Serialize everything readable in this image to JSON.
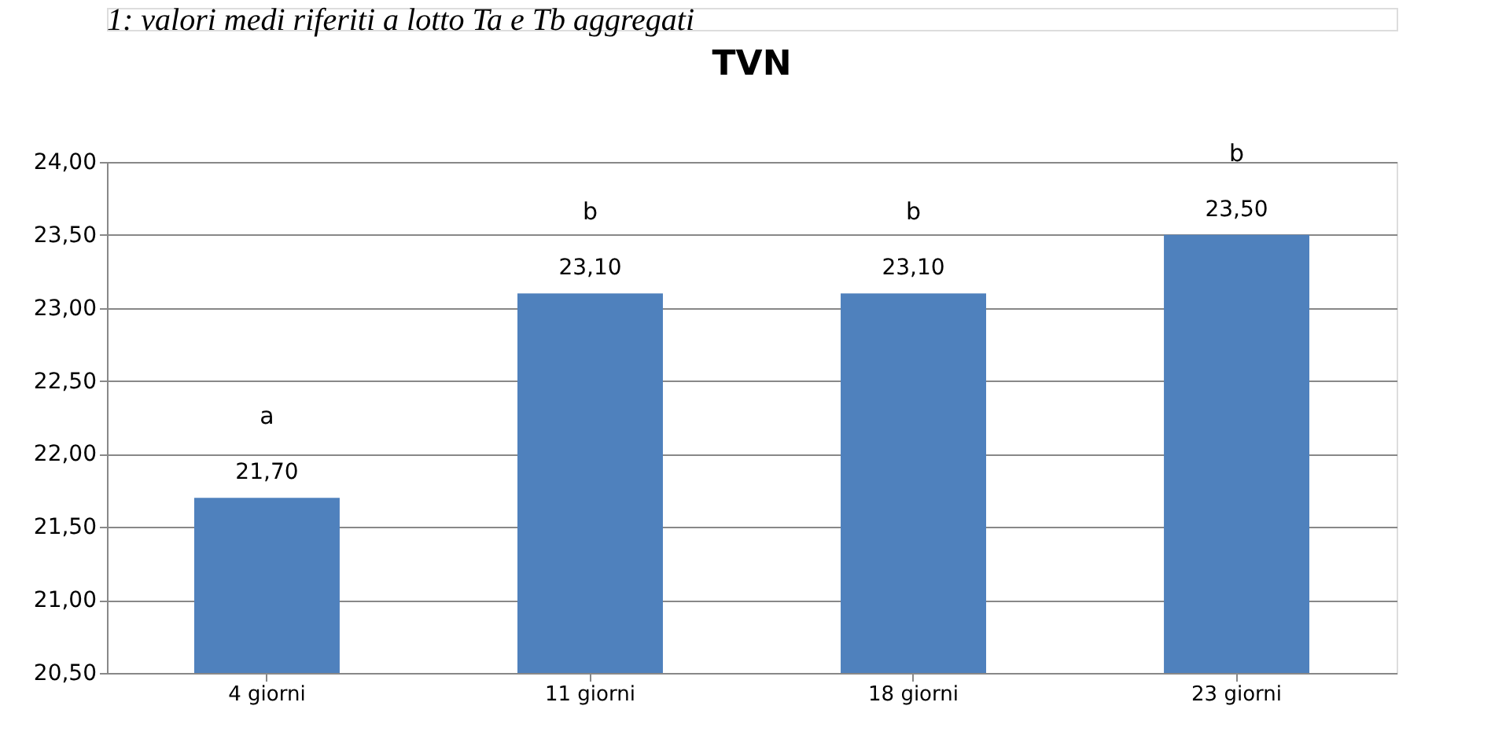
{
  "chart_data": {
    "type": "bar",
    "title": "TVN",
    "categories": [
      "4 giorni",
      "11 giorni",
      "18 giorni",
      "23 giorni"
    ],
    "values": [
      21.7,
      23.1,
      23.1,
      23.5
    ],
    "value_labels": [
      "21,70",
      "23,10",
      "23,10",
      "23,50"
    ],
    "color": "#4f81bd",
    "ylim": [
      20.5,
      24.0
    ],
    "yticks": [
      {
        "value": 20.5,
        "label": "20,50"
      },
      {
        "value": 21.0,
        "label": "21,00"
      },
      {
        "value": 21.5,
        "label": "21,50"
      },
      {
        "value": 22.0,
        "label": "22,00"
      },
      {
        "value": 22.5,
        "label": "22,50"
      },
      {
        "value": 23.0,
        "label": "23,00"
      },
      {
        "value": 23.5,
        "label": "23,50"
      },
      {
        "value": 24.0,
        "label": "24,00"
      }
    ],
    "grid": "y",
    "annotations": [
      "1: valori medi riferiti a lotto Ta e Tb aggregati",
      "a",
      "b",
      "b",
      "b"
    ]
  }
}
